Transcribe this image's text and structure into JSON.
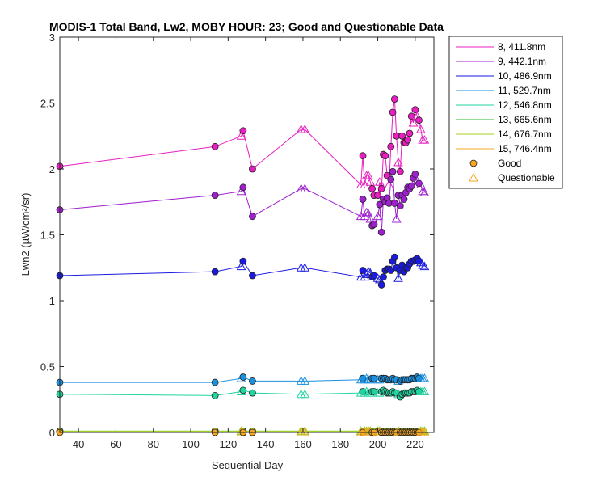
{
  "chart_data": {
    "type": "line",
    "title": "MODIS-1 Total Band, Lw2, MOBY HOUR: 23;  Good and Questionable Data",
    "xlabel": "Sequential Day",
    "ylabel": "Lwn2 (µW/cm²/sr)",
    "xlim": [
      30,
      230
    ],
    "ylim": [
      0,
      3
    ],
    "xticks": [
      "40",
      "60",
      "80",
      "100",
      "120",
      "140",
      "160",
      "180",
      "200",
      "220"
    ],
    "yticks": [
      "0",
      "0.5",
      "1",
      "1.5",
      "2",
      "2.5",
      "3"
    ],
    "grid": false,
    "legend_placement": "outside-right",
    "marker_legend": [
      {
        "label": "Good",
        "marker": "circle",
        "color": "#f5a623"
      },
      {
        "label": "Questionable",
        "marker": "triangle",
        "color": "#f5a623"
      }
    ],
    "x": [
      30,
      113,
      127,
      128,
      133,
      159,
      161,
      191,
      192,
      193,
      194,
      195,
      196,
      197,
      198,
      200,
      201,
      202,
      203,
      204,
      205,
      206,
      207,
      208,
      209,
      210,
      211,
      212,
      213,
      214,
      215,
      216,
      217,
      218,
      219,
      220,
      221,
      222,
      223,
      224,
      225
    ],
    "series": [
      {
        "name": "8, 411.8nm",
        "color": "#e81ec0",
        "values": [
          2.02,
          2.17,
          2.25,
          2.29,
          2.0,
          2.3,
          2.3,
          1.88,
          2.1,
          1.88,
          1.95,
          1.95,
          1.9,
          1.85,
          1.8,
          1.8,
          1.9,
          1.85,
          2.11,
          2.1,
          1.95,
          1.88,
          2.17,
          2.43,
          2.53,
          2.25,
          2.05,
          1.98,
          2.25,
          2.2,
          2.2,
          2.22,
          2.27,
          2.4,
          2.35,
          2.45,
          2.4,
          2.37,
          2.3,
          2.22,
          2.22
        ],
        "quality": [
          "g",
          "g",
          "q",
          "g",
          "g",
          "q",
          "q",
          "q",
          "g",
          "q",
          "q",
          "q",
          "q",
          "g",
          "g",
          "g",
          "q",
          "g",
          "g",
          "g",
          "g",
          "q",
          "g",
          "g",
          "g",
          "g",
          "q",
          "g",
          "g",
          "g",
          "g",
          "g",
          "g",
          "g",
          "q",
          "g",
          "q",
          "g",
          "q",
          "q",
          "q"
        ]
      },
      {
        "name": "9, 442.1nm",
        "color": "#a020d0",
        "values": [
          1.69,
          1.8,
          1.83,
          1.86,
          1.64,
          1.85,
          1.85,
          1.64,
          1.77,
          1.64,
          1.67,
          1.66,
          1.62,
          1.57,
          1.58,
          1.64,
          1.73,
          1.52,
          1.77,
          1.75,
          1.78,
          1.74,
          1.92,
          1.98,
          1.74,
          1.62,
          1.8,
          1.72,
          1.8,
          1.77,
          1.82,
          1.86,
          1.85,
          1.87,
          1.93,
          1.96,
          1.91,
          1.89,
          1.88,
          1.83,
          1.82
        ],
        "quality": [
          "g",
          "g",
          "q",
          "g",
          "g",
          "q",
          "q",
          "q",
          "g",
          "q",
          "q",
          "q",
          "q",
          "g",
          "g",
          "q",
          "g",
          "g",
          "g",
          "g",
          "g",
          "g",
          "g",
          "g",
          "g",
          "q",
          "g",
          "g",
          "g",
          "g",
          "g",
          "g",
          "g",
          "g",
          "g",
          "g",
          "q",
          "g",
          "q",
          "q",
          "q"
        ]
      },
      {
        "name": "10, 486.9nm",
        "color": "#1a1ae0",
        "values": [
          1.19,
          1.22,
          1.26,
          1.3,
          1.19,
          1.25,
          1.25,
          1.18,
          1.23,
          1.18,
          1.2,
          1.22,
          1.21,
          1.18,
          1.19,
          1.17,
          1.16,
          1.12,
          1.18,
          1.23,
          1.24,
          1.24,
          1.23,
          1.3,
          1.33,
          1.25,
          1.17,
          1.23,
          1.27,
          1.22,
          1.25,
          1.25,
          1.28,
          1.3,
          1.3,
          1.31,
          1.32,
          1.3,
          1.29,
          1.27,
          1.26
        ],
        "quality": [
          "g",
          "g",
          "q",
          "g",
          "g",
          "q",
          "q",
          "q",
          "g",
          "q",
          "q",
          "q",
          "q",
          "g",
          "g",
          "q",
          "q",
          "g",
          "g",
          "g",
          "g",
          "g",
          "g",
          "g",
          "g",
          "g",
          "q",
          "g",
          "g",
          "g",
          "g",
          "g",
          "g",
          "g",
          "g",
          "g",
          "g",
          "g",
          "q",
          "q",
          "q"
        ]
      },
      {
        "name": "11, 529.7nm",
        "color": "#1a90e0",
        "values": [
          0.38,
          0.38,
          0.41,
          0.42,
          0.39,
          0.39,
          0.39,
          0.4,
          0.41,
          0.4,
          0.41,
          0.4,
          0.4,
          0.41,
          0.41,
          0.4,
          0.4,
          0.41,
          0.41,
          0.41,
          0.4,
          0.4,
          0.4,
          0.41,
          0.4,
          0.4,
          0.39,
          0.39,
          0.4,
          0.4,
          0.4,
          0.4,
          0.4,
          0.41,
          0.41,
          0.41,
          0.42,
          0.41,
          0.41,
          0.41,
          0.41
        ],
        "quality": [
          "g",
          "g",
          "q",
          "g",
          "g",
          "q",
          "q",
          "q",
          "g",
          "q",
          "q",
          "q",
          "q",
          "g",
          "g",
          "q",
          "q",
          "g",
          "g",
          "g",
          "g",
          "g",
          "g",
          "g",
          "g",
          "g",
          "q",
          "g",
          "g",
          "g",
          "g",
          "g",
          "g",
          "g",
          "g",
          "g",
          "g",
          "g",
          "q",
          "q",
          "q"
        ]
      },
      {
        "name": "12, 546.8nm",
        "color": "#20d4a0",
        "values": [
          0.29,
          0.28,
          0.31,
          0.32,
          0.3,
          0.29,
          0.29,
          0.3,
          0.31,
          0.3,
          0.31,
          0.3,
          0.3,
          0.31,
          0.31,
          0.3,
          0.3,
          0.31,
          0.32,
          0.31,
          0.3,
          0.3,
          0.3,
          0.31,
          0.3,
          0.3,
          0.29,
          0.27,
          0.29,
          0.3,
          0.3,
          0.3,
          0.3,
          0.31,
          0.31,
          0.31,
          0.32,
          0.31,
          0.31,
          0.31,
          0.31
        ],
        "quality": [
          "g",
          "g",
          "q",
          "g",
          "g",
          "q",
          "q",
          "q",
          "g",
          "q",
          "q",
          "q",
          "q",
          "g",
          "g",
          "q",
          "q",
          "g",
          "g",
          "g",
          "g",
          "g",
          "g",
          "g",
          "g",
          "g",
          "q",
          "g",
          "g",
          "g",
          "g",
          "g",
          "g",
          "g",
          "g",
          "g",
          "g",
          "g",
          "q",
          "q",
          "q"
        ]
      },
      {
        "name": "13, 665.6nm",
        "color": "#28b828",
        "values": [
          0.01,
          0.01,
          0.01,
          0.01,
          0.01,
          0.01,
          0.01,
          0.01,
          0.01,
          0.01,
          0.01,
          0.01,
          0.01,
          0.01,
          0.01,
          0.01,
          0.01,
          0.01,
          0.01,
          0.01,
          0.01,
          0.01,
          0.01,
          0.01,
          0.01,
          0.01,
          0.01,
          0.01,
          0.01,
          0.01,
          0.01,
          0.01,
          0.01,
          0.01,
          0.01,
          0.01,
          0.01,
          0.01,
          0.01,
          0.01,
          0.01
        ],
        "quality": [
          "g",
          "g",
          "q",
          "g",
          "g",
          "q",
          "q",
          "q",
          "g",
          "q",
          "q",
          "q",
          "q",
          "g",
          "g",
          "q",
          "q",
          "g",
          "g",
          "g",
          "g",
          "g",
          "g",
          "g",
          "g",
          "g",
          "q",
          "g",
          "g",
          "g",
          "g",
          "g",
          "g",
          "g",
          "g",
          "g",
          "g",
          "g",
          "q",
          "q",
          "q"
        ]
      },
      {
        "name": "14, 676.7nm",
        "color": "#a8d020",
        "values": [
          0.01,
          0.01,
          0.01,
          0.01,
          0.01,
          0.01,
          0.01,
          0.01,
          0.01,
          0.01,
          0.01,
          0.01,
          0.01,
          0.01,
          0.01,
          0.01,
          0.01,
          0.01,
          0.01,
          0.01,
          0.01,
          0.01,
          0.01,
          0.01,
          0.01,
          0.01,
          0.01,
          0.01,
          0.01,
          0.01,
          0.01,
          0.01,
          0.01,
          0.01,
          0.01,
          0.01,
          0.01,
          0.01,
          0.01,
          0.01,
          0.01
        ],
        "quality": [
          "g",
          "g",
          "q",
          "g",
          "g",
          "q",
          "q",
          "q",
          "g",
          "q",
          "q",
          "q",
          "q",
          "g",
          "g",
          "q",
          "q",
          "g",
          "g",
          "g",
          "g",
          "g",
          "g",
          "g",
          "g",
          "g",
          "q",
          "g",
          "g",
          "g",
          "g",
          "g",
          "g",
          "g",
          "g",
          "g",
          "g",
          "g",
          "q",
          "q",
          "q"
        ]
      },
      {
        "name": "15, 746.4nm",
        "color": "#f5a623",
        "values": [
          0.0,
          0.0,
          0.0,
          0.0,
          0.0,
          0.0,
          0.0,
          0.0,
          0.0,
          0.0,
          0.0,
          0.0,
          0.0,
          0.0,
          0.0,
          0.0,
          0.0,
          0.0,
          0.0,
          0.0,
          0.0,
          0.0,
          0.0,
          0.0,
          0.0,
          0.0,
          0.0,
          0.0,
          0.0,
          0.0,
          0.0,
          0.0,
          0.0,
          0.0,
          0.0,
          0.0,
          0.0,
          0.0,
          0.0,
          0.0,
          0.0
        ],
        "quality": [
          "g",
          "g",
          "q",
          "g",
          "g",
          "q",
          "q",
          "q",
          "g",
          "q",
          "q",
          "q",
          "q",
          "g",
          "g",
          "q",
          "q",
          "g",
          "g",
          "g",
          "g",
          "g",
          "g",
          "g",
          "g",
          "g",
          "q",
          "g",
          "g",
          "g",
          "g",
          "g",
          "g",
          "g",
          "g",
          "g",
          "g",
          "g",
          "q",
          "q",
          "q"
        ]
      }
    ]
  }
}
